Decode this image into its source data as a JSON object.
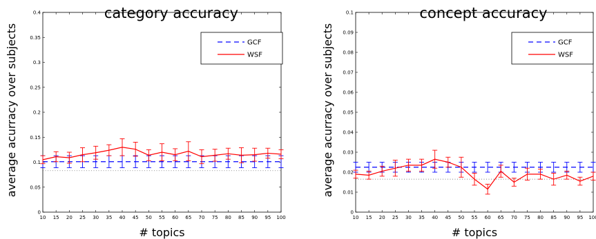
{
  "chart_data": [
    {
      "type": "line",
      "title": "category accuracy",
      "xlabel": "# topics",
      "ylabel": "average acurracy over subjects",
      "x": [
        10,
        15,
        20,
        25,
        30,
        35,
        40,
        45,
        50,
        55,
        60,
        65,
        70,
        75,
        80,
        85,
        90,
        95,
        100
      ],
      "xlim": [
        10,
        100
      ],
      "ylim": [
        0,
        0.4
      ],
      "xticks": [
        "10",
        "15",
        "20",
        "25",
        "30",
        "35",
        "40",
        "45",
        "50",
        "55",
        "60",
        "65",
        "70",
        "75",
        "80",
        "85",
        "90",
        "95",
        "100"
      ],
      "yticks": [
        "0",
        "0.05",
        "0.1",
        "0.15",
        "0.2",
        "0.25",
        "0.3",
        "0.35",
        "0.4"
      ],
      "chance_level": 0.083,
      "legend_position": "top-right",
      "series": [
        {
          "name": "GCF",
          "color": "#0000ff",
          "style": "dashed",
          "values": [
            0.101,
            0.101,
            0.101,
            0.101,
            0.101,
            0.101,
            0.101,
            0.101,
            0.101,
            0.101,
            0.101,
            0.101,
            0.101,
            0.101,
            0.101,
            0.101,
            0.101,
            0.101,
            0.101
          ],
          "error": [
            0.012,
            0.012,
            0.012,
            0.012,
            0.012,
            0.012,
            0.012,
            0.012,
            0.012,
            0.012,
            0.012,
            0.012,
            0.012,
            0.012,
            0.012,
            0.012,
            0.012,
            0.012,
            0.012
          ]
        },
        {
          "name": "WSF",
          "color": "#ff0000",
          "style": "solid",
          "values": [
            0.105,
            0.111,
            0.109,
            0.115,
            0.119,
            0.124,
            0.13,
            0.126,
            0.114,
            0.12,
            0.115,
            0.122,
            0.111,
            0.114,
            0.117,
            0.114,
            0.115,
            0.118,
            0.116
          ],
          "error": [
            0.008,
            0.01,
            0.011,
            0.014,
            0.013,
            0.011,
            0.017,
            0.014,
            0.011,
            0.017,
            0.012,
            0.019,
            0.014,
            0.012,
            0.011,
            0.015,
            0.013,
            0.01,
            0.009
          ]
        }
      ]
    },
    {
      "type": "line",
      "title": "concept accuracy",
      "xlabel": "# topics",
      "ylabel": "average acurracy over subjects",
      "x": [
        10,
        15,
        20,
        25,
        30,
        35,
        40,
        45,
        50,
        55,
        60,
        65,
        70,
        75,
        80,
        85,
        90,
        95,
        100
      ],
      "xlim": [
        10,
        100
      ],
      "ylim": [
        0,
        0.1
      ],
      "xticks": [
        "10",
        "15",
        "20",
        "25",
        "30",
        "35",
        "40",
        "45",
        "50",
        "55",
        "60",
        "65",
        "70",
        "75",
        "80",
        "85",
        "90",
        "95",
        "100"
      ],
      "yticks": [
        "0",
        "0.01",
        "0.02",
        "0.03",
        "0.04",
        "0.05",
        "0.06",
        "0.07",
        "0.08",
        "0.09",
        "0.1"
      ],
      "chance_level": 0.0165,
      "legend_position": "top-right",
      "series": [
        {
          "name": "GCF",
          "color": "#0000ff",
          "style": "dashed",
          "values": [
            0.0225,
            0.0225,
            0.0225,
            0.0225,
            0.0225,
            0.0225,
            0.0225,
            0.0225,
            0.0225,
            0.0225,
            0.0225,
            0.0225,
            0.0225,
            0.0225,
            0.0225,
            0.0225,
            0.0225,
            0.0225,
            0.0225
          ],
          "error": [
            0.0025,
            0.0025,
            0.0025,
            0.0025,
            0.0025,
            0.0025,
            0.0025,
            0.0025,
            0.0025,
            0.0025,
            0.0025,
            0.0025,
            0.0025,
            0.0025,
            0.0025,
            0.0025,
            0.0025,
            0.0025,
            0.0025
          ]
        },
        {
          "name": "WSF",
          "color": "#ff0000",
          "style": "solid",
          "values": [
            0.019,
            0.0185,
            0.0205,
            0.022,
            0.0235,
            0.0235,
            0.0265,
            0.025,
            0.0225,
            0.0165,
            0.0115,
            0.0205,
            0.015,
            0.019,
            0.019,
            0.0165,
            0.0185,
            0.0155,
            0.018
          ],
          "error": [
            0.002,
            0.002,
            0.0025,
            0.004,
            0.003,
            0.003,
            0.0045,
            0.0025,
            0.005,
            0.003,
            0.0025,
            0.003,
            0.002,
            0.003,
            0.0025,
            0.003,
            0.002,
            0.002,
            0.002
          ]
        }
      ]
    }
  ]
}
